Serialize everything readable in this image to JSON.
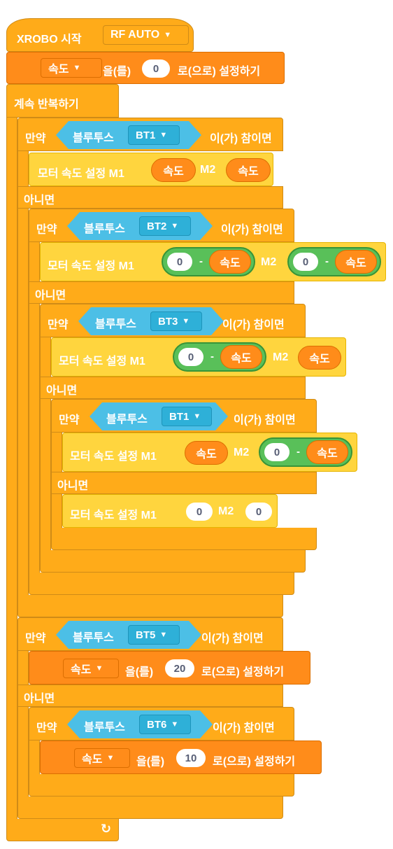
{
  "hat": {
    "title": "XROBO 시작",
    "mode": "RF AUTO"
  },
  "init": {
    "variable": "속도",
    "eul": "을(를)",
    "value": "0",
    "tail": "로(으로) 설정하기"
  },
  "forever": {
    "label": "계속 반복하기",
    "loop_icon": "↻"
  },
  "common": {
    "if": "만약",
    "bluetooth": "블루투스",
    "then": "이(가) 참이면",
    "else": "아니면",
    "motor": "모터 속도 설정 M1",
    "m2": "M2",
    "speed": "속도",
    "zero": "0",
    "minus": "-"
  },
  "blocks": {
    "if1": {
      "button": "BT1"
    },
    "if2": {
      "button": "BT2"
    },
    "if3": {
      "button": "BT3"
    },
    "if4": {
      "button": "BT1"
    },
    "if5": {
      "button": "BT5"
    },
    "if6": {
      "button": "BT6"
    }
  },
  "set20": {
    "value": "20"
  },
  "set10": {
    "value": "10"
  },
  "colors": {
    "control": "#FFAB19",
    "variable": "#FF8C1A",
    "motor": "#FFD53E",
    "operator": "#59C059",
    "bluetooth": "#4CBFE6"
  }
}
